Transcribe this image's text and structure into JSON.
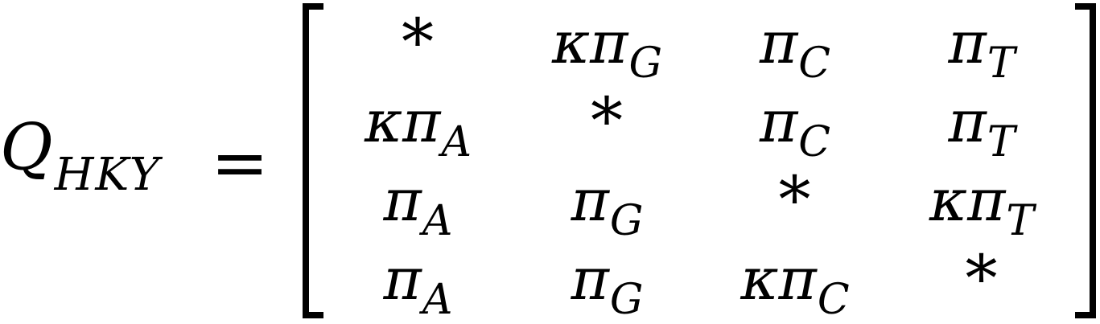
{
  "equation": {
    "lhs": {
      "symbol": "Q",
      "subscript": "HKY"
    },
    "relation": "=",
    "matrix": {
      "rows": [
        [
          {
            "base": "*",
            "sub": ""
          },
          {
            "base": "κπ",
            "sub": "G"
          },
          {
            "base": "π",
            "sub": "C"
          },
          {
            "base": "π",
            "sub": "T"
          }
        ],
        [
          {
            "base": "κπ",
            "sub": "A"
          },
          {
            "base": "*",
            "sub": ""
          },
          {
            "base": "π",
            "sub": "C"
          },
          {
            "base": "π",
            "sub": "T"
          }
        ],
        [
          {
            "base": "π",
            "sub": "A"
          },
          {
            "base": "π",
            "sub": "G"
          },
          {
            "base": "*",
            "sub": ""
          },
          {
            "base": "κπ",
            "sub": "T"
          }
        ],
        [
          {
            "base": "π",
            "sub": "A"
          },
          {
            "base": "π",
            "sub": "G"
          },
          {
            "base": "κπ",
            "sub": "C"
          },
          {
            "base": "*",
            "sub": ""
          }
        ]
      ]
    }
  }
}
